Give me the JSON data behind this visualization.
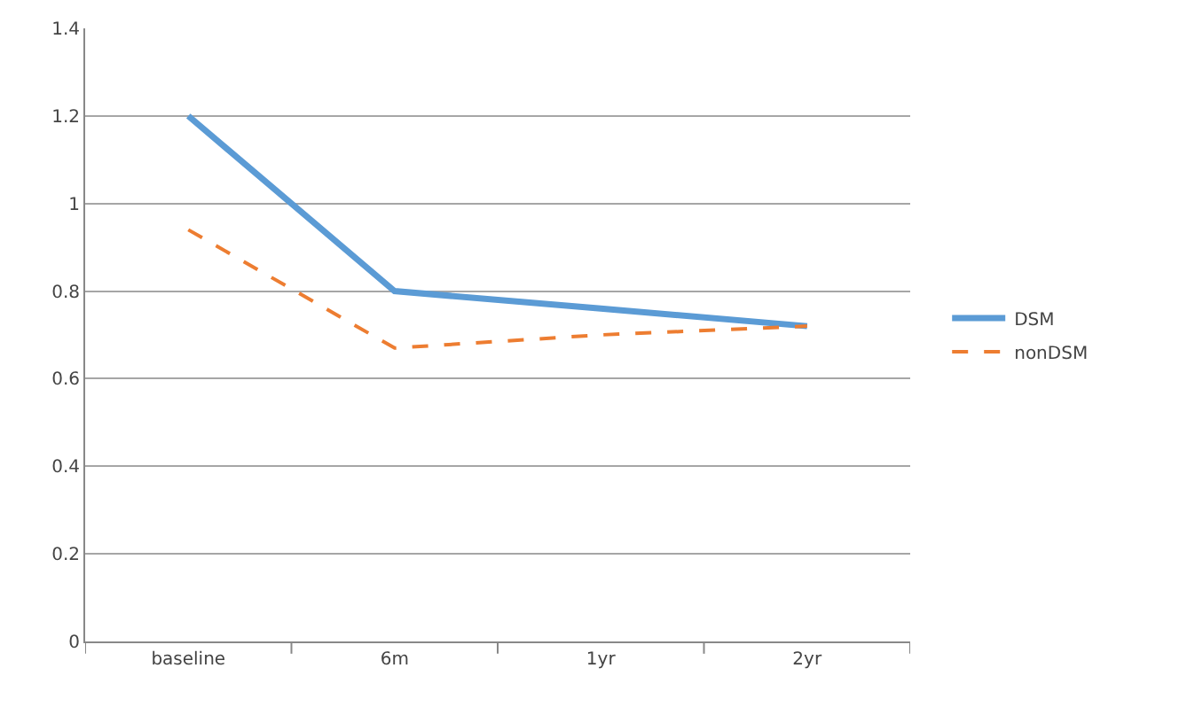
{
  "chart_data": {
    "type": "line",
    "categories": [
      "baseline",
      "6m",
      "1yr",
      "2yr"
    ],
    "series": [
      {
        "name": "DSM",
        "color": "#5b9bd5",
        "values": [
          1.2,
          0.8,
          0.76,
          0.72
        ],
        "line_style": "solid"
      },
      {
        "name": "nonDSM",
        "color": "#ed7d31",
        "values": [
          0.94,
          0.67,
          0.7,
          0.72
        ],
        "line_style": "dashed"
      }
    ],
    "ylim": [
      0,
      1.4
    ],
    "yticks": [
      0,
      0.2,
      0.4,
      0.6,
      0.8,
      1,
      1.2,
      1.4
    ],
    "grid": "y",
    "legend": "right",
    "marker": "none"
  }
}
